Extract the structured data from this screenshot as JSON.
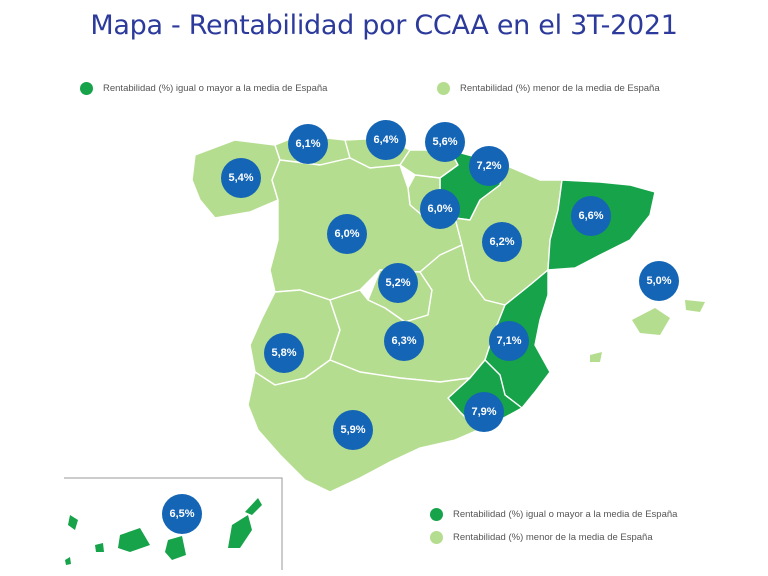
{
  "title": "Mapa - Rentabilidad por CCAA en el 3T-2021",
  "colors": {
    "above": "#16a34a",
    "below": "#b5dd8f",
    "bubble": "#1465b5",
    "border": "#ffffff"
  },
  "legend_top": {
    "above_label": "Rentabilidad (%) igual o mayor a la media de España",
    "below_label": "Rentabilidad (%) menor de la media de España"
  },
  "legend_bottom": {
    "above_label": "Rentabilidad (%) igual o mayor a la media de España",
    "below_label": "Rentabilidad (%) menor de la media de España"
  },
  "regions": [
    {
      "name": "Galicia",
      "value": "5,4%",
      "category": "below"
    },
    {
      "name": "Asturias",
      "value": "6,1%",
      "category": "below"
    },
    {
      "name": "Cantabria",
      "value": "6,4%",
      "category": "below"
    },
    {
      "name": "País Vasco",
      "value": "5,6%",
      "category": "below"
    },
    {
      "name": "Navarra",
      "value": "7,2%",
      "category": "above"
    },
    {
      "name": "La Rioja",
      "value": "6,0%",
      "category": "below"
    },
    {
      "name": "Castilla y León",
      "value": "6,0%",
      "category": "below"
    },
    {
      "name": "Aragón",
      "value": "6,2%",
      "category": "below"
    },
    {
      "name": "Cataluña",
      "value": "6,6%",
      "category": "above"
    },
    {
      "name": "Islas Baleares",
      "value": "5,0%",
      "category": "below"
    },
    {
      "name": "Madrid",
      "value": "5,2%",
      "category": "below"
    },
    {
      "name": "Extremadura",
      "value": "5,8%",
      "category": "below"
    },
    {
      "name": "Castilla-La Mancha",
      "value": "6,3%",
      "category": "below"
    },
    {
      "name": "Comunidad Valenciana",
      "value": "7,1%",
      "category": "above"
    },
    {
      "name": "Murcia",
      "value": "7,9%",
      "category": "above"
    },
    {
      "name": "Andalucía",
      "value": "5,9%",
      "category": "below"
    },
    {
      "name": "Canarias",
      "value": "6,5%",
      "category": "above"
    }
  ]
}
